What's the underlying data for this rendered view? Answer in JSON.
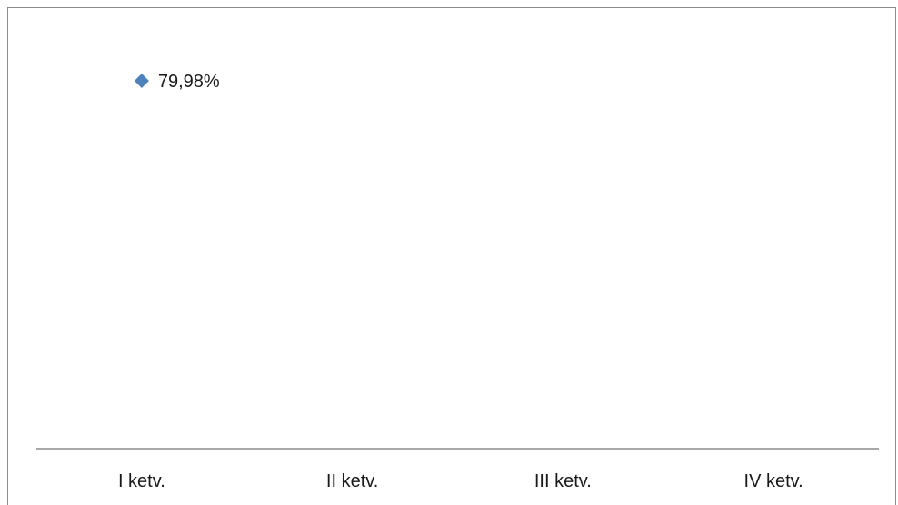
{
  "chart_data": {
    "type": "scatter",
    "categories": [
      "I ketv.",
      "II ketv.",
      "III ketv.",
      "IV ketv."
    ],
    "series": [
      {
        "values": [
          79.98,
          null,
          null,
          null
        ],
        "data_labels": [
          "79,98%",
          "",
          "",
          ""
        ],
        "color": "#4f81bd",
        "marker": "diamond"
      }
    ],
    "title": "",
    "xlabel": "",
    "ylabel": "",
    "grid": false,
    "legend": "none"
  }
}
